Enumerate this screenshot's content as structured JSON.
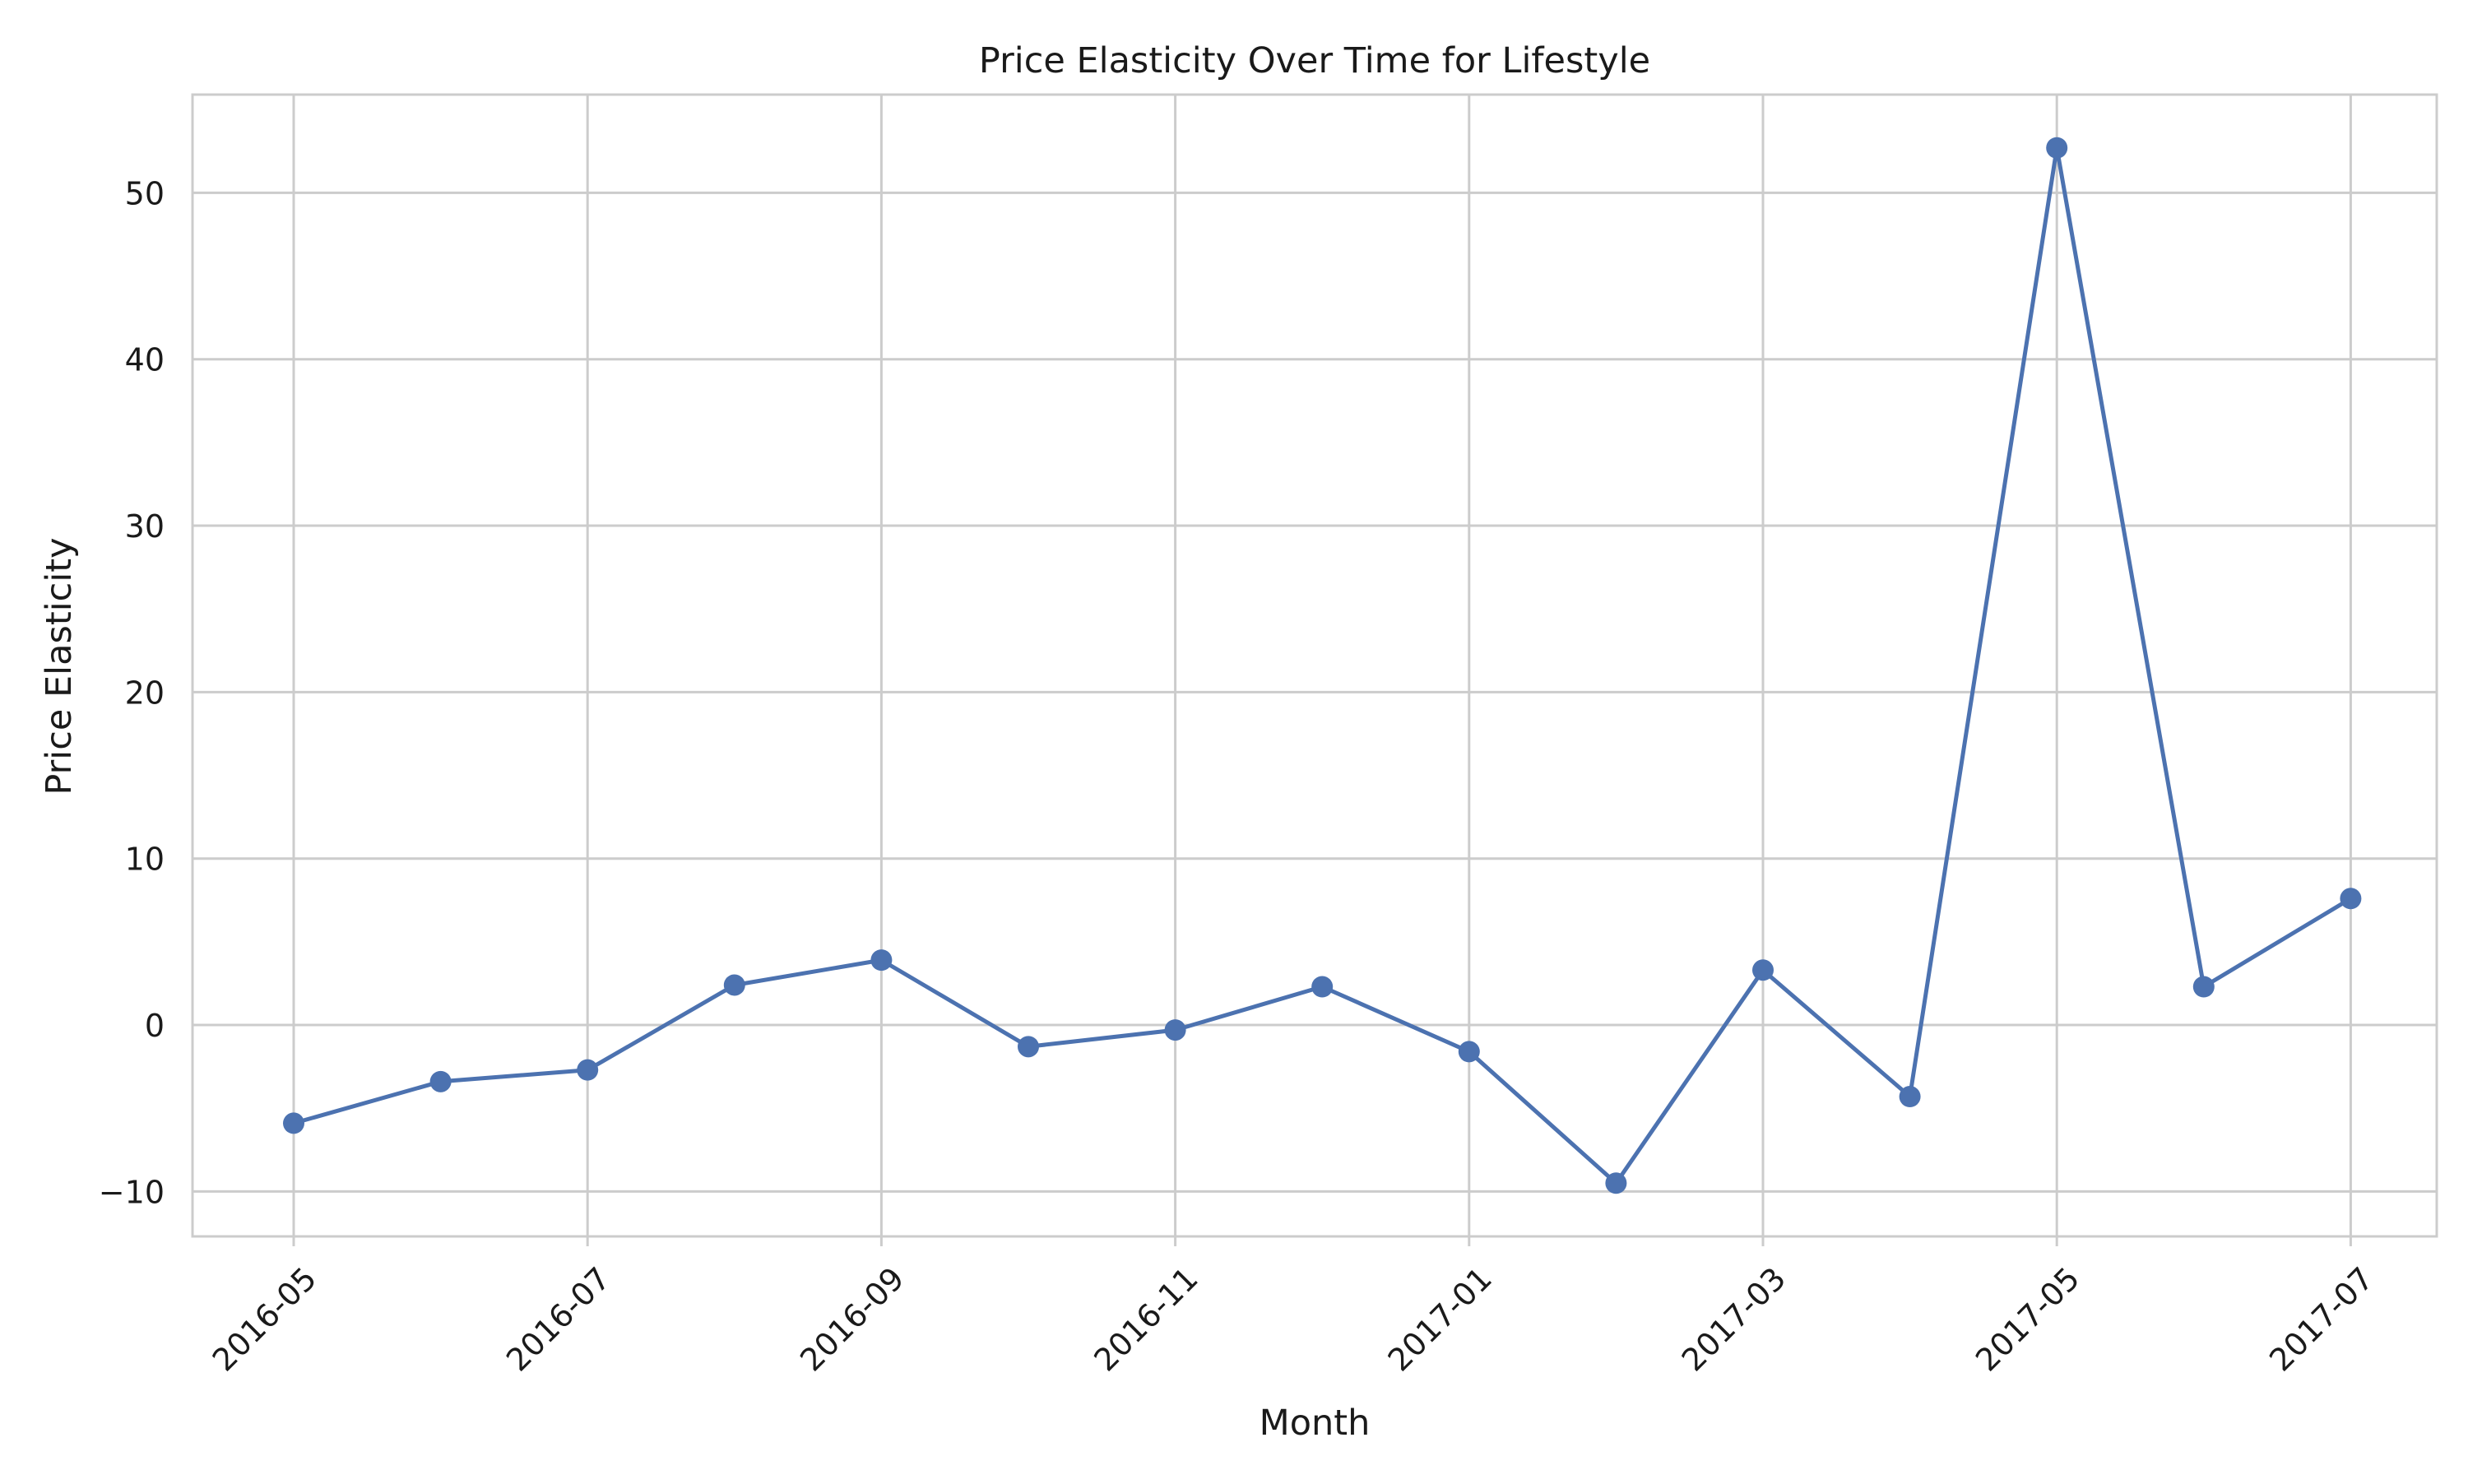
{
  "chart_data": {
    "type": "line",
    "title": "Price Elasticity Over Time for Lifestyle",
    "xlabel": "Month",
    "ylabel": "Price Elasticity",
    "x": [
      "2016-05",
      "2016-06",
      "2016-07",
      "2016-08",
      "2016-09",
      "2016-10",
      "2016-11",
      "2016-12",
      "2017-01",
      "2017-02",
      "2017-03",
      "2017-04",
      "2017-05",
      "2017-06",
      "2017-07"
    ],
    "series": [
      {
        "values": [
          -5.9,
          -3.4,
          -2.7,
          2.4,
          3.9,
          -1.3,
          -0.3,
          2.3,
          -1.6,
          -9.5,
          3.3,
          -4.3,
          52.7,
          2.3,
          7.6
        ]
      }
    ],
    "x_tick_labels": [
      "2016-05",
      "2016-07",
      "2016-09",
      "2016-11",
      "2017-01",
      "2017-03",
      "2017-05",
      "2017-07"
    ],
    "y_ticks": [
      -10,
      0,
      10,
      20,
      30,
      40,
      50
    ],
    "y_tick_labels": [
      "−10",
      "0",
      "10",
      "20",
      "30",
      "40",
      "50"
    ],
    "ylim": [
      -12.7,
      55.9
    ],
    "grid": true,
    "legend": false,
    "colors": {
      "series": "#4c72b0",
      "grid": "#cccccc",
      "spine": "#cccccc",
      "background": "#ffffff"
    }
  }
}
